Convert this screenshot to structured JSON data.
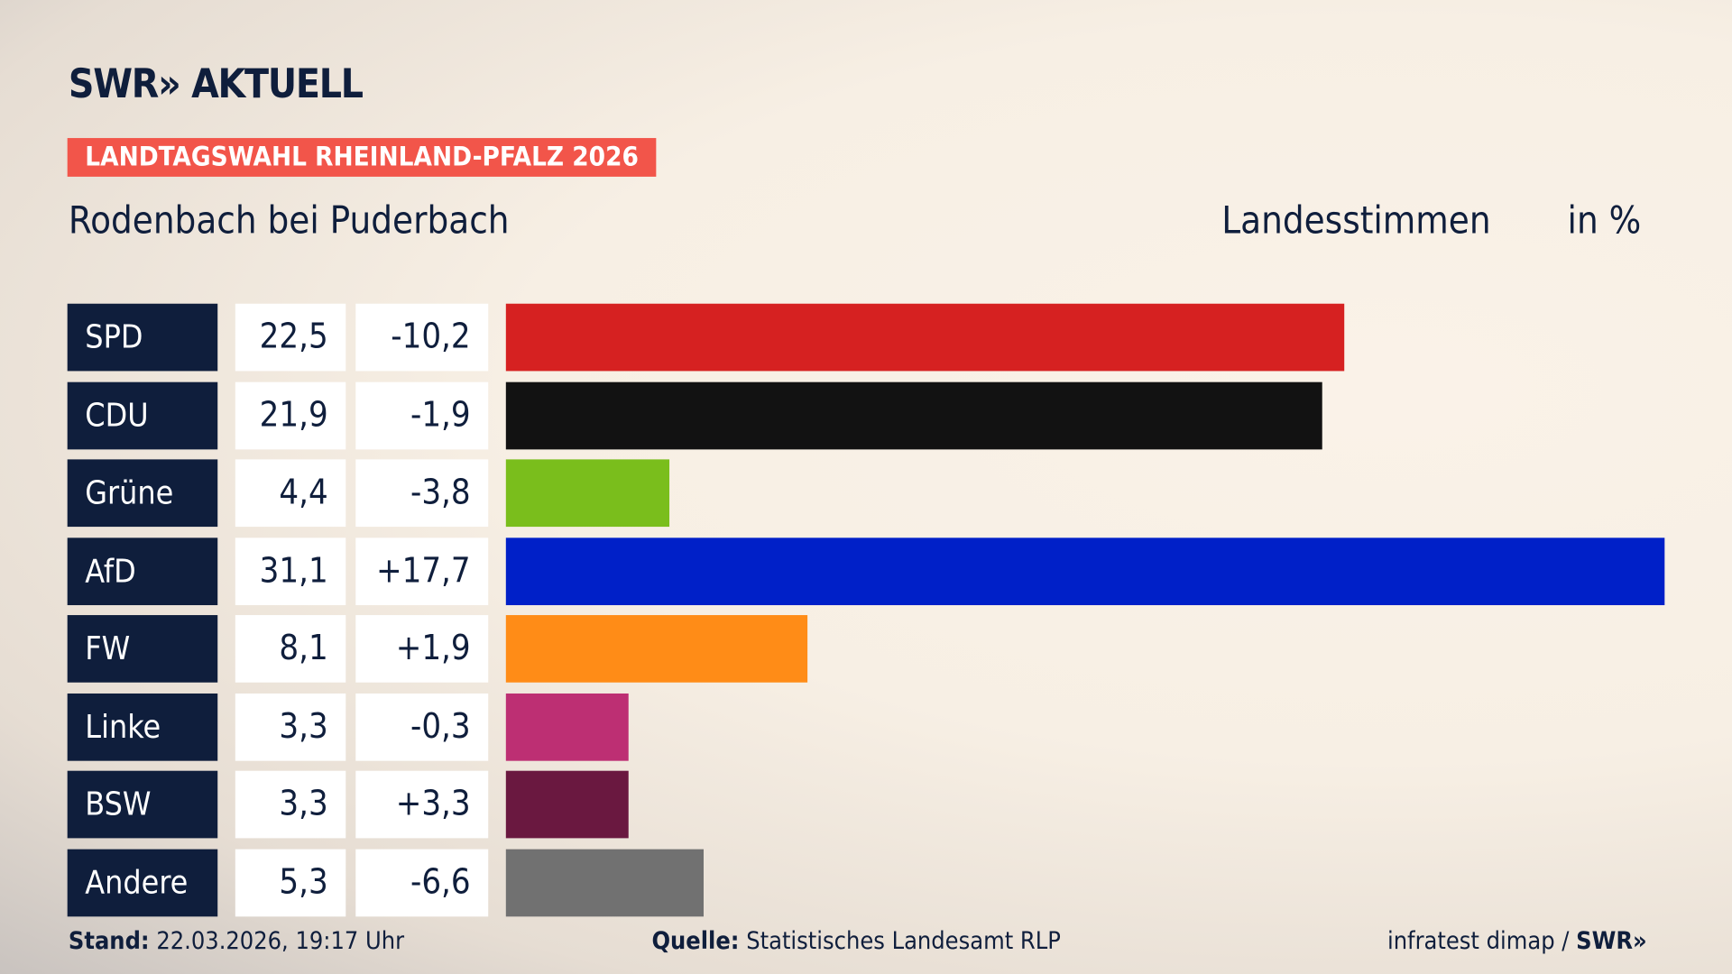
{
  "header": {
    "logo": "SWR» AKTUELL",
    "badge": "LANDTAGSWAHL RHEINLAND-PFALZ 2026",
    "place": "Rodenbach bei Puderbach",
    "kind": "Landesstimmen",
    "unit": "in %"
  },
  "chart_data": {
    "type": "bar",
    "orientation": "horizontal",
    "xlim": [
      0,
      31.1
    ],
    "categories": [
      "SPD",
      "CDU",
      "Grüne",
      "AfD",
      "FW",
      "Linke",
      "BSW",
      "Andere"
    ],
    "values": [
      22.5,
      21.9,
      4.4,
      31.1,
      8.1,
      3.3,
      3.3,
      5.3
    ],
    "value_labels": [
      "22,5",
      "21,9",
      "4,4",
      "31,1",
      "8,1",
      "3,3",
      "3,3",
      "5,3"
    ],
    "diff_labels": [
      "-10,2",
      "-1,9",
      "-3,8",
      "+17,7",
      "+1,9",
      "-0,3",
      "+3,3",
      "-6,6"
    ],
    "colors": [
      "#d62121",
      "#121212",
      "#7abe1c",
      "#0020c8",
      "#ff8c17",
      "#bd2f73",
      "#6a1840",
      "#717171"
    ]
  },
  "footer": {
    "stand_label": "Stand:",
    "stand_value": "22.03.2026, 19:17 Uhr",
    "source_label": "Quelle:",
    "source_value": "Statistisches Landesamt RLP",
    "credit": "infratest dimap / ",
    "credit_logo": "SWR»"
  }
}
